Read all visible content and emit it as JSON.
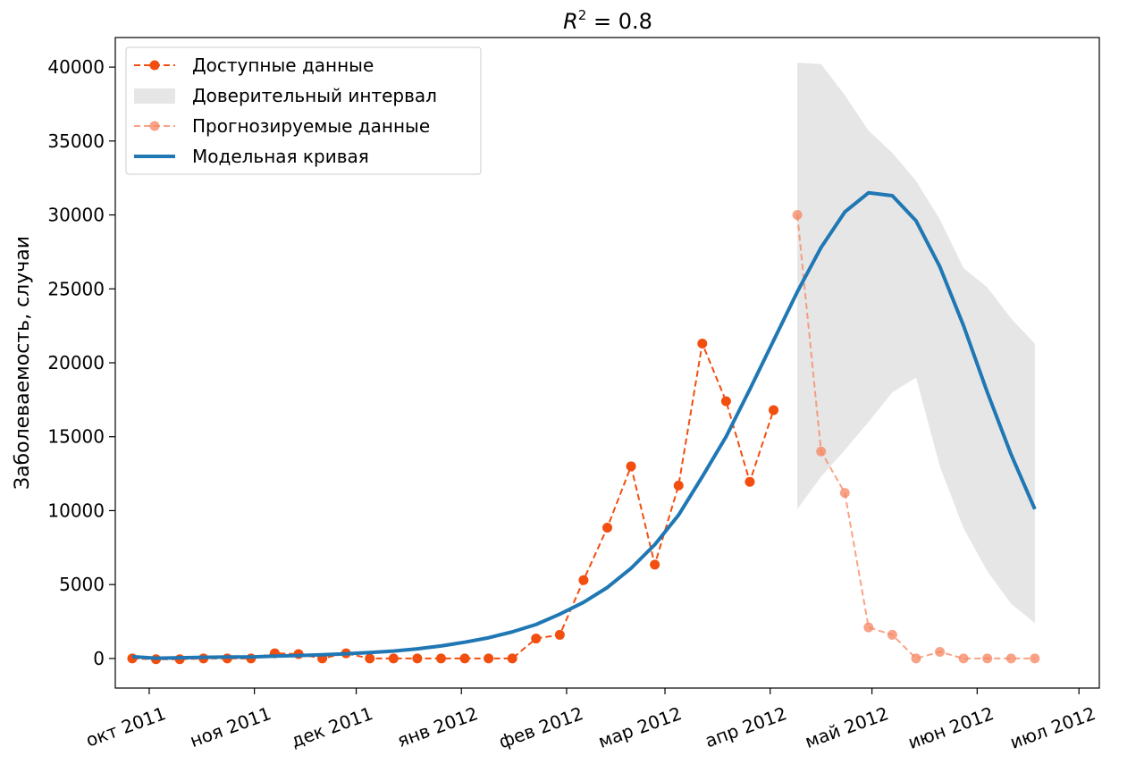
{
  "chart_data": {
    "type": "line",
    "title": "R² = 0.8",
    "title_parts": {
      "base": "R",
      "sup": "2",
      "rest": " = 0.8"
    },
    "ylabel": "Заболеваемость, случаи",
    "xlabel": "",
    "ylim": [
      -2000,
      42000
    ],
    "x_axis": "weekly dates, 2011-09-26 .. 2012-06-25",
    "y_ticks": [
      0,
      5000,
      10000,
      15000,
      20000,
      25000,
      30000,
      35000,
      40000
    ],
    "y_tick_labels": [
      "0",
      "5000",
      "10000",
      "15000",
      "20000",
      "25000",
      "30000",
      "35000",
      "40000"
    ],
    "x_ticks": [
      {
        "label": "окт 2011",
        "date": "2011-10-01"
      },
      {
        "label": "ноя 2011",
        "date": "2011-11-01"
      },
      {
        "label": "дек 2011",
        "date": "2011-12-01"
      },
      {
        "label": "янв 2012",
        "date": "2012-01-01"
      },
      {
        "label": "фев 2012",
        "date": "2012-02-01"
      },
      {
        "label": "мар 2012",
        "date": "2012-03-01"
      },
      {
        "label": "апр 2012",
        "date": "2012-04-01"
      },
      {
        "label": "май 2012",
        "date": "2012-05-01"
      },
      {
        "label": "июн 2012",
        "date": "2012-06-01"
      },
      {
        "label": "июл 2012",
        "date": "2012-07-01"
      }
    ],
    "legend_position": "top-left",
    "grid": false,
    "dates": [
      "2011-09-26",
      "2011-10-03",
      "2011-10-10",
      "2011-10-17",
      "2011-10-24",
      "2011-10-31",
      "2011-11-07",
      "2011-11-14",
      "2011-11-21",
      "2011-11-28",
      "2011-12-05",
      "2011-12-12",
      "2011-12-19",
      "2011-12-26",
      "2012-01-02",
      "2012-01-09",
      "2012-01-16",
      "2012-01-23",
      "2012-01-30",
      "2012-02-06",
      "2012-02-13",
      "2012-02-20",
      "2012-02-27",
      "2012-03-05",
      "2012-03-12",
      "2012-03-19",
      "2012-03-26",
      "2012-04-02",
      "2012-04-09",
      "2012-04-16",
      "2012-04-23",
      "2012-04-30",
      "2012-05-07",
      "2012-05-14",
      "2012-05-21",
      "2012-05-28",
      "2012-06-04",
      "2012-06-11",
      "2012-06-18",
      "2012-06-25"
    ],
    "series": [
      {
        "name": "Доступные данные",
        "style": "dashed-markers",
        "color": "#f24e0f",
        "opacity": 1.0,
        "x": [
          "2011-09-26",
          "2011-10-03",
          "2011-10-10",
          "2011-10-17",
          "2011-10-24",
          "2011-10-31",
          "2011-11-07",
          "2011-11-14",
          "2011-11-21",
          "2011-11-28",
          "2011-12-05",
          "2011-12-12",
          "2011-12-19",
          "2011-12-26",
          "2012-01-02",
          "2012-01-09",
          "2012-01-16",
          "2012-01-23",
          "2012-01-30",
          "2012-02-06",
          "2012-02-13",
          "2012-02-20",
          "2012-02-27",
          "2012-03-05",
          "2012-03-12",
          "2012-03-19",
          "2012-03-26",
          "2012-04-02"
        ],
        "y": [
          0,
          -50,
          -50,
          0,
          0,
          0,
          350,
          300,
          0,
          350,
          0,
          0,
          0,
          0,
          0,
          0,
          0,
          1350,
          1600,
          5300,
          8850,
          13000,
          6350,
          11700,
          21300,
          17400,
          11950,
          16800
        ]
      },
      {
        "name": "Прогнозируемые данные",
        "style": "dashed-markers",
        "color": "#f5845f",
        "opacity": 0.75,
        "x": [
          "2012-04-09",
          "2012-04-16",
          "2012-04-23",
          "2012-04-30",
          "2012-05-07",
          "2012-05-14",
          "2012-05-21",
          "2012-05-28",
          "2012-06-04",
          "2012-06-11",
          "2012-06-18"
        ],
        "y": [
          30000,
          14000,
          11200,
          2100,
          1600,
          0,
          450,
          0,
          0,
          0,
          0
        ]
      },
      {
        "name": "Модельная кривая",
        "style": "solid",
        "color": "#1f77b4",
        "x": [
          "2011-09-26",
          "2011-10-03",
          "2011-10-10",
          "2011-10-17",
          "2011-10-24",
          "2011-10-31",
          "2011-11-07",
          "2011-11-14",
          "2011-11-21",
          "2011-11-28",
          "2011-12-05",
          "2011-12-12",
          "2011-12-19",
          "2011-12-26",
          "2012-01-02",
          "2012-01-09",
          "2012-01-16",
          "2012-01-23",
          "2012-01-30",
          "2012-02-06",
          "2012-02-13",
          "2012-02-20",
          "2012-02-27",
          "2012-03-05",
          "2012-03-12",
          "2012-03-19",
          "2012-03-26",
          "2012-04-02",
          "2012-04-09",
          "2012-04-16",
          "2012-04-23",
          "2012-04-30",
          "2012-05-07",
          "2012-05-14",
          "2012-05-21",
          "2012-05-28",
          "2012-06-04",
          "2012-06-11",
          "2012-06-18"
        ],
        "y": [
          120,
          20,
          50,
          80,
          100,
          100,
          160,
          200,
          250,
          320,
          400,
          500,
          650,
          850,
          1100,
          1400,
          1800,
          2300,
          3000,
          3800,
          4800,
          6100,
          7700,
          9700,
          12300,
          15000,
          18200,
          21500,
          24800,
          27800,
          30200,
          31500,
          31300,
          29600,
          26500,
          22500,
          18000,
          13800,
          10100
        ]
      }
    ],
    "confidence_interval": {
      "name": "Доверительный интервал",
      "color": "#e6e6e6",
      "x": [
        "2012-04-09",
        "2012-04-16",
        "2012-04-23",
        "2012-04-30",
        "2012-05-07",
        "2012-05-14",
        "2012-05-21",
        "2012-05-28",
        "2012-06-04",
        "2012-06-11",
        "2012-06-18"
      ],
      "lower": [
        10100,
        12300,
        14100,
        16000,
        18000,
        19000,
        13000,
        8800,
        5900,
        3700,
        2400
      ],
      "upper": [
        40300,
        40200,
        38100,
        35700,
        34200,
        32300,
        29700,
        26400,
        25100,
        23000,
        21300
      ]
    },
    "legend_entries": [
      {
        "label": "Доступные данные",
        "kind": "line-marker",
        "color": "#f24e0f",
        "opacity": 1.0
      },
      {
        "label": "Доверительный интервал",
        "kind": "patch",
        "color": "#e6e6e6"
      },
      {
        "label": "Прогнозируемые данные",
        "kind": "line-marker",
        "color": "#f5845f",
        "opacity": 0.75
      },
      {
        "label": "Модельная кривая",
        "kind": "solid",
        "color": "#1f77b4"
      }
    ]
  }
}
